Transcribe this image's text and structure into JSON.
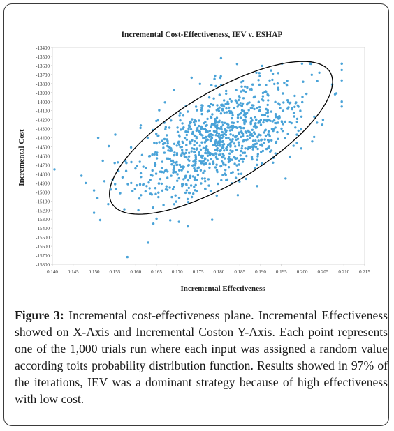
{
  "figure_label": "Figure 3:",
  "caption_text": "Incremental cost-effectiveness plane. Incremental Effectiveness showed on X-Axis and Incremental Coston Y-Axis. Each point represents one of the 1,000 trials run where each input was assigned a random value according toits probability distribution function. Results showed in 97% of the iterations, IEV was a dominant strategy because of high effectiveness with low cost.",
  "chart_data": {
    "type": "scatter",
    "title": "Incremental Cost-Effectiveness, IEV v. ESHAP",
    "xlabel": "Incremental Effectiveness",
    "ylabel": "Incremental Cost",
    "xlim": [
      0.14,
      0.215
    ],
    "ylim": [
      -15800,
      -13400
    ],
    "x_ticks": [
      "0.140",
      "0.145",
      "0.150",
      "0.155",
      "0.160",
      "0.165",
      "0.170",
      "0.175",
      "0.180",
      "0.185",
      "0.190",
      "0.195",
      "0.200",
      "0.205",
      "0.210",
      "0.215"
    ],
    "y_ticks": [
      "-13400",
      "-13500",
      "-13600",
      "-13700",
      "-13800",
      "-13900",
      "-14000",
      "-14100",
      "-14200",
      "-14300",
      "-14400",
      "-14500",
      "-14600",
      "-14700",
      "-14800",
      "-14900",
      "-15000",
      "-15100",
      "-15200",
      "-15300",
      "-15400",
      "-15500",
      "-15600",
      "-15700",
      "-15800"
    ],
    "grid": false,
    "point_color": "#4aa3d8",
    "ellipse_color": "#000000",
    "n_trials": 1000,
    "outliers": [
      {
        "x": 0.1405,
        "y": -14750
      },
      {
        "x": 0.147,
        "y": -14820
      },
      {
        "x": 0.148,
        "y": -14900
      },
      {
        "x": 0.15,
        "y": -15230
      },
      {
        "x": 0.151,
        "y": -14400
      },
      {
        "x": 0.1515,
        "y": -15310
      },
      {
        "x": 0.1525,
        "y": -14880
      },
      {
        "x": 0.158,
        "y": -15720
      },
      {
        "x": 0.163,
        "y": -15560
      },
      {
        "x": 0.1725,
        "y": -15380
      },
      {
        "x": 0.1805,
        "y": -13520
      },
      {
        "x": 0.189,
        "y": -13680
      },
      {
        "x": 0.2095,
        "y": -13650
      },
      {
        "x": 0.205,
        "y": -14200
      },
      {
        "x": 0.196,
        "y": -14850
      }
    ],
    "cluster": {
      "center_x": 0.1805,
      "center_y": -14400,
      "spread_x": 0.0105,
      "spread_y": 330,
      "correlation": 0.6
    },
    "ellipse": {
      "center_x": 0.1805,
      "center_y": -14400,
      "x_extent": [
        0.1535,
        0.2075
      ],
      "y_extent": [
        -15150,
        -13650
      ]
    }
  }
}
